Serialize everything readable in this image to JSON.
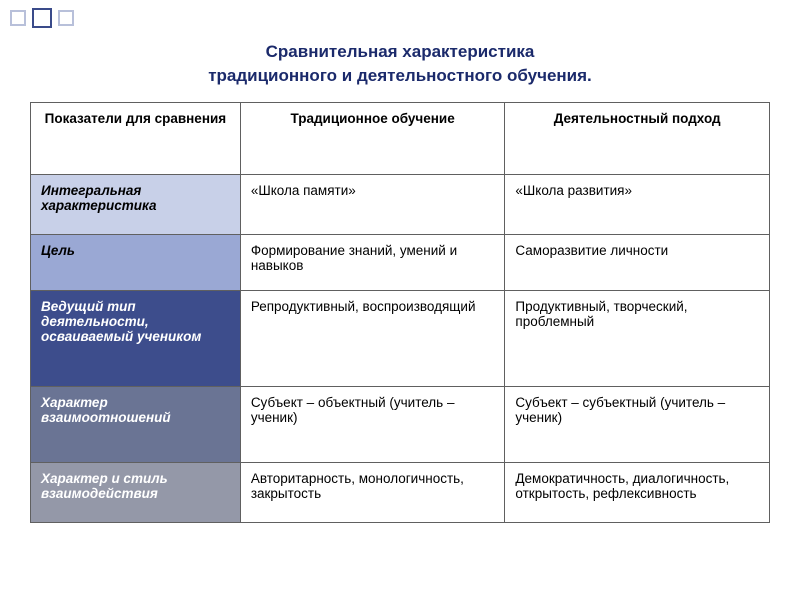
{
  "title_line1": "Сравнительная характеристика",
  "title_line2": "традиционного и деятельностного обучения.",
  "table": {
    "columns": [
      "Показатели для сравнения",
      "Традиционное обучение",
      "Деятельностный подход"
    ],
    "rows": [
      {
        "label": "Интегральная характеристика",
        "c1": "«Школа памяти»",
        "c2": "«Школа развития»"
      },
      {
        "label": "Цель",
        "c1": "Формирование знаний, умений и навыков",
        "c2": "Саморазвитие личности"
      },
      {
        "label": "Ведущий тип деятельности, осваиваемый учеником",
        "c1": "Репродуктивный, воспроизводящий",
        "c2": "Продуктивный, творческий, проблемный"
      },
      {
        "label": "Характер взаимоотношений",
        "c1": "Субъект – объектный (учитель – ученик)",
        "c2": "Субъект – субъектный (учитель – ученик)"
      },
      {
        "label": "Характер и стиль взаимодействия",
        "c1": "Авторитарность, монологичность, закрытость",
        "c2": "Демократичность, диалогичность, открытость, рефлексивность"
      }
    ]
  },
  "colors": {
    "title_color": "#1b2a6b",
    "border_color": "#606060",
    "row_shades": [
      "#c8d0e8",
      "#9aa8d4",
      "#3d4d8c",
      "#6a7494",
      "#9498a8"
    ],
    "background": "#ffffff"
  }
}
